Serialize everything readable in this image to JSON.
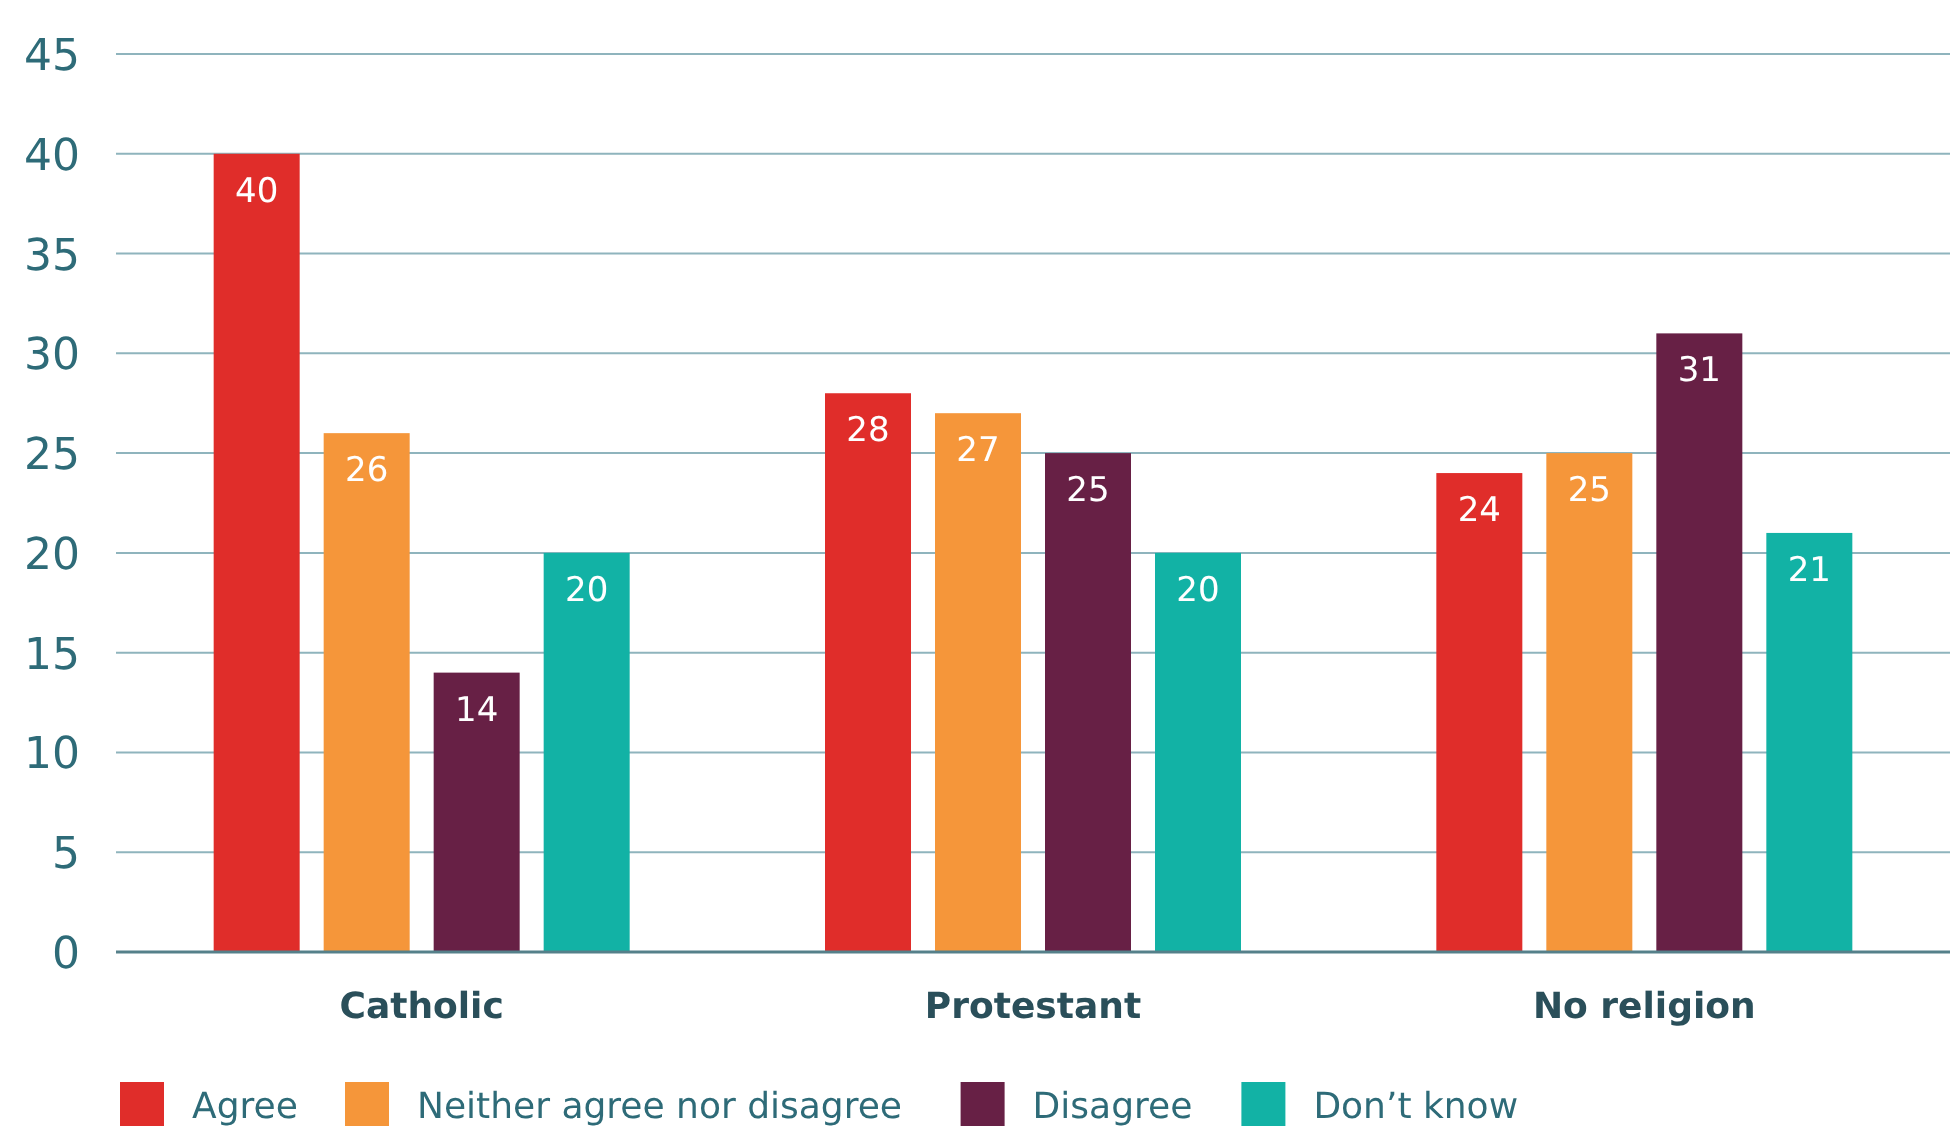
{
  "chart_data": {
    "type": "bar",
    "categories": [
      "Catholic",
      "Protestant",
      "No religion"
    ],
    "series": [
      {
        "name": "Agree",
        "color": "#e02d2a",
        "values": [
          40,
          28,
          24
        ]
      },
      {
        "name": "Neither agree nor disagree",
        "color": "#f5963a",
        "values": [
          26,
          27,
          25
        ]
      },
      {
        "name": "Disagree",
        "color": "#672045",
        "values": [
          14,
          25,
          31
        ]
      },
      {
        "name": "Don’t know",
        "color": "#12b2a5",
        "values": [
          20,
          20,
          21
        ]
      }
    ],
    "ylim": [
      0,
      45
    ],
    "yticks": [
      0,
      5,
      10,
      15,
      20,
      25,
      30,
      35,
      40,
      45
    ],
    "grid": "y",
    "legend": "bottom",
    "data_labels": true
  }
}
